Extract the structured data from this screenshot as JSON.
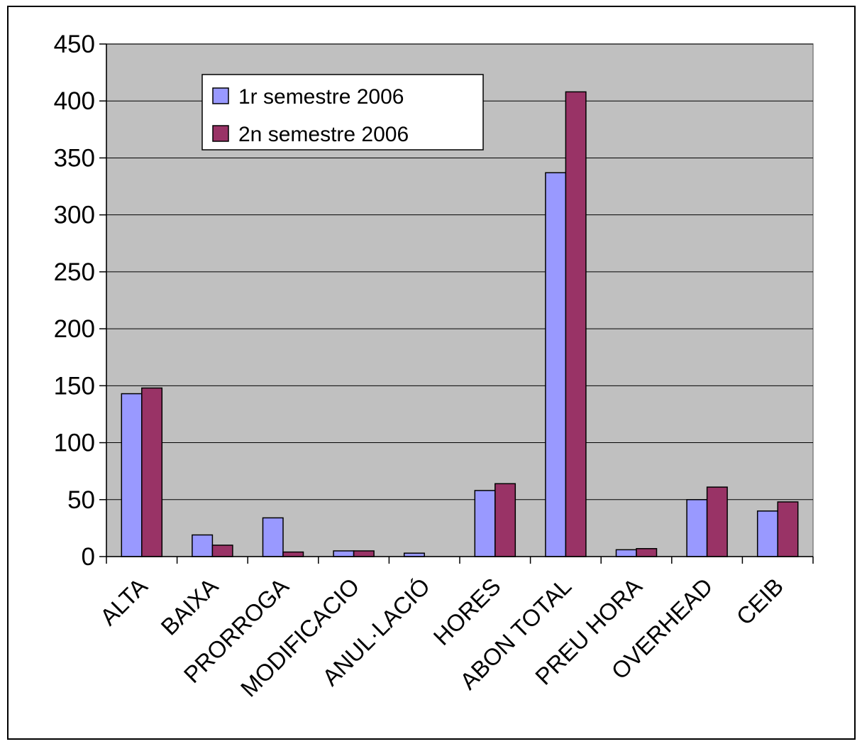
{
  "chart_data": {
    "type": "bar",
    "title": "",
    "xlabel": "",
    "ylabel": "",
    "ylim": [
      0,
      450
    ],
    "yticks": [
      0,
      50,
      100,
      150,
      200,
      250,
      300,
      350,
      400,
      450
    ],
    "grid": true,
    "legend_position": "top-left",
    "categories": [
      "ALTA",
      "BAIXA",
      "PRORROGA",
      "MODIFICACIO",
      "ANUL·LACIÓ",
      "HORES",
      "ABON TOTAL",
      "PREU HORA",
      "OVERHEAD",
      "CEIB"
    ],
    "series": [
      {
        "name": "1r semestre 2006",
        "color": "#9999ff",
        "values": [
          143,
          19,
          34,
          5,
          3,
          58,
          337,
          6,
          50,
          40
        ]
      },
      {
        "name": "2n semestre 2006",
        "color": "#993366",
        "values": [
          148,
          10,
          4,
          5,
          0,
          64,
          408,
          7,
          61,
          48
        ]
      }
    ],
    "plot_background": "#c0c0c0"
  }
}
